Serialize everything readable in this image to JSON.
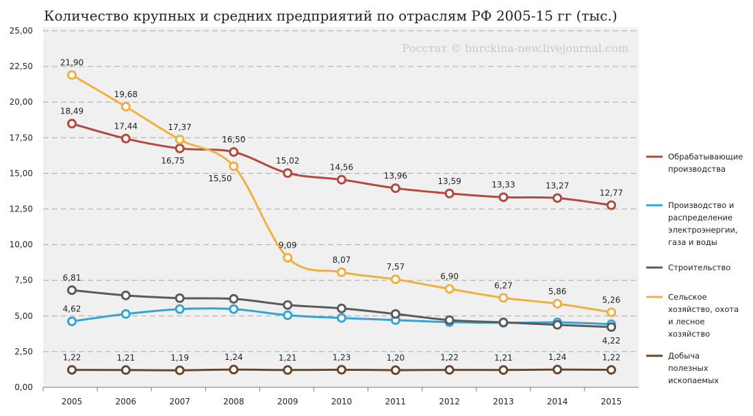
{
  "chart_data": {
    "type": "line",
    "title": "Количество крупных и средних предприятий по отраслям РФ 2005-15 гг (тыс.)",
    "watermark": "Росстат © burckina-new.livejournal.com",
    "x": [
      "2005",
      "2006",
      "2007",
      "2008",
      "2009",
      "2010",
      "2011",
      "2012",
      "2013",
      "2014",
      "2015"
    ],
    "ylim": [
      0,
      25
    ],
    "yticks": [
      "0,00",
      "2,50",
      "5,00",
      "7,50",
      "10,00",
      "12,50",
      "15,00",
      "17,50",
      "20,00",
      "22,50",
      "25,00"
    ],
    "grid": true,
    "legend_placement": "right",
    "series": [
      {
        "name": [
          "Обрабатывающие",
          "производства"
        ],
        "color": "#b5473f",
        "values": [
          18.49,
          17.44,
          16.75,
          16.5,
          15.02,
          14.56,
          13.96,
          13.59,
          13.33,
          13.27,
          12.77
        ],
        "labels": [
          "18,49",
          "17,44",
          "16,75",
          "16,50",
          "15,02",
          "14,56",
          "13,96",
          "13,59",
          "13,33",
          "13,27",
          "12,77"
        ]
      },
      {
        "name": [
          "Производство и",
          "распределение",
          "электроэнергии,",
          "газа и воды"
        ],
        "color": "#36a3d4",
        "values": [
          4.62,
          5.14,
          5.48,
          5.48,
          5.05,
          4.86,
          4.71,
          4.57,
          4.52,
          4.55,
          4.42
        ],
        "labels": [
          "4,62",
          "",
          "",
          "",
          "",
          "",
          "",
          "",
          "",
          "",
          ""
        ]
      },
      {
        "name": [
          "Строительство"
        ],
        "color": "#5a5a5a",
        "values": [
          6.81,
          6.44,
          6.25,
          6.2,
          5.77,
          5.53,
          5.14,
          4.71,
          4.55,
          4.38,
          4.22
        ],
        "labels": [
          "6,81",
          "",
          "",
          "",
          "",
          "",
          "",
          "",
          "",
          "",
          "4,22"
        ]
      },
      {
        "name": [
          "Сельское",
          "хозяйство, охота",
          "и лесное",
          "хозяйство"
        ],
        "color": "#f0b040",
        "values": [
          21.9,
          19.68,
          17.37,
          15.5,
          9.09,
          8.07,
          7.57,
          6.9,
          6.27,
          5.86,
          5.26
        ],
        "labels": [
          "21,90",
          "19,68",
          "17,37",
          "15,50",
          "9,09",
          "8,07",
          "7,57",
          "6,90",
          "6,27",
          "5,86",
          "5,26"
        ]
      },
      {
        "name": [
          "Добыча",
          "полезных",
          "ископаемых"
        ],
        "color": "#6b4526",
        "values": [
          1.22,
          1.21,
          1.19,
          1.24,
          1.21,
          1.23,
          1.2,
          1.22,
          1.21,
          1.24,
          1.22
        ],
        "labels": [
          "1,22",
          "1,21",
          "1,19",
          "1,24",
          "1,21",
          "1,23",
          "1,20",
          "1,22",
          "1,21",
          "1,24",
          "1,22"
        ]
      }
    ]
  }
}
